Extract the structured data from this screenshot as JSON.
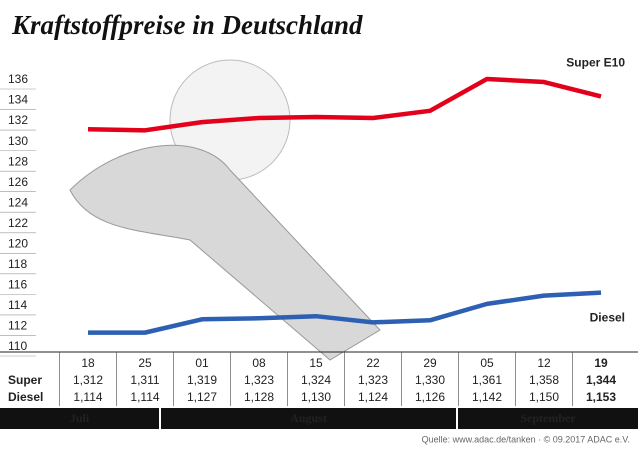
{
  "chart_data": {
    "type": "line",
    "title": "Kraftstoffpreise in Deutschland",
    "categories": [
      "18",
      "25",
      "01",
      "08",
      "15",
      "22",
      "29",
      "05",
      "12",
      "19"
    ],
    "months": [
      "Juli",
      "August",
      "September"
    ],
    "row_labels": [
      "Super",
      "Diesel"
    ],
    "series": [
      {
        "name": "Super E10",
        "color": "#e2001a",
        "values": [
          131.2,
          131.1,
          131.9,
          132.3,
          132.4,
          132.3,
          133.0,
          136.1,
          135.8,
          134.4
        ],
        "value_labels": [
          "1,312",
          "1,311",
          "1,319",
          "1,323",
          "1,324",
          "1,323",
          "1,330",
          "1,361",
          "1,358",
          "1,344"
        ]
      },
      {
        "name": "Diesel",
        "color": "#2d5fb3",
        "values": [
          111.4,
          111.4,
          112.7,
          112.8,
          113.0,
          112.4,
          112.6,
          114.2,
          115.0,
          115.3
        ],
        "value_labels": [
          "1,114",
          "1,114",
          "1,127",
          "1,128",
          "1,130",
          "1,124",
          "1,126",
          "1,142",
          "1,150",
          "1,153"
        ]
      }
    ],
    "ylim": [
      110,
      136
    ],
    "yticks": [
      110,
      112,
      114,
      116,
      118,
      120,
      122,
      124,
      126,
      128,
      130,
      132,
      134,
      136
    ],
    "grid": true,
    "source": "Quelle: www.adac.de/tanken · © 09.2017 ADAC e.V."
  }
}
